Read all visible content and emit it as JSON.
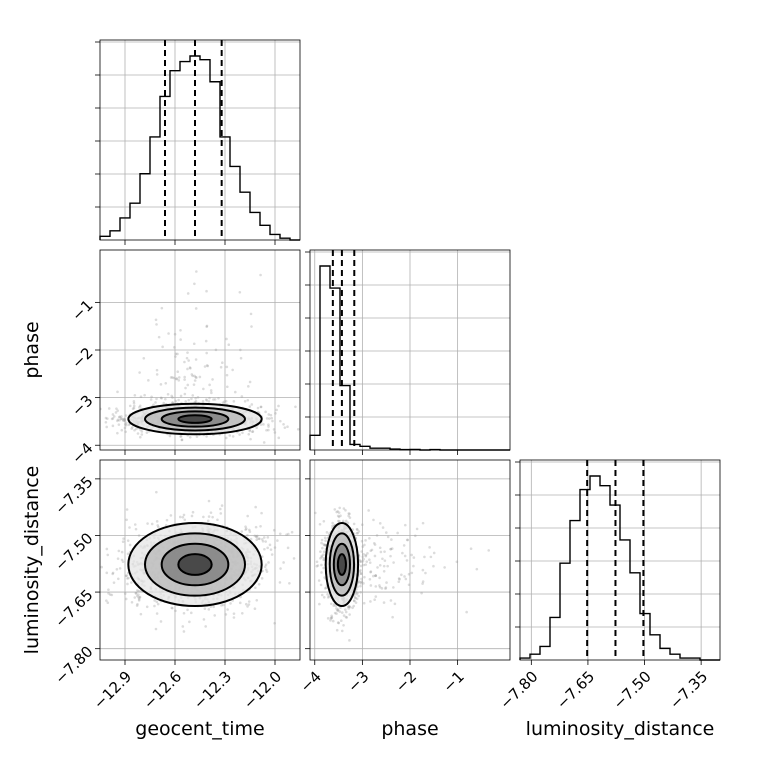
{
  "chart_data": {
    "type": "corner",
    "parameters": [
      "geocent_time",
      "phase",
      "luminosity_distance"
    ],
    "axis_ranges": {
      "geocent_time": [
        -13.05,
        -11.85
      ],
      "phase": [
        -4.1,
        0.1
      ],
      "luminosity_distance": [
        -7.83,
        -7.3
      ]
    },
    "ticks": {
      "geocent_time": [
        -12.9,
        -12.6,
        -12.3,
        -12.0
      ],
      "phase": [
        -4,
        -3,
        -2,
        -1
      ],
      "luminosity_distance": [
        -7.8,
        -7.65,
        -7.5,
        -7.35
      ]
    },
    "tick_labels": {
      "geocent_time": [
        "−12.9",
        "−12.6",
        "−12.3",
        "−12.0"
      ],
      "phase": [
        "−4",
        "−3",
        "−2",
        "−1"
      ],
      "luminosity_distance": [
        "−7.80",
        "−7.65",
        "−7.50",
        "−7.35"
      ]
    },
    "quantiles": {
      "geocent_time": [
        -12.66,
        -12.48,
        -12.32
      ],
      "phase": [
        -3.62,
        -3.43,
        -3.17
      ],
      "luminosity_distance": [
        -7.652,
        -7.577,
        -7.503
      ]
    },
    "histograms": {
      "geocent_time": {
        "range": [
          -13.05,
          -11.85
        ],
        "bins": 20,
        "counts": [
          2,
          5,
          12,
          20,
          36,
          56,
          78,
          92,
          97,
          100,
          98,
          86,
          56,
          40,
          26,
          15,
          8,
          3,
          1,
          0
        ]
      },
      "phase": {
        "range": [
          -4.1,
          0.1
        ],
        "bins": 20,
        "counts": [
          8,
          100,
          88,
          35,
          3,
          2,
          1,
          1,
          0.5,
          0.2,
          0.3,
          0,
          0.2,
          0,
          0,
          0,
          0,
          0,
          0,
          0
        ]
      },
      "luminosity_distance": {
        "range": [
          -7.83,
          -7.3
        ],
        "bins": 20,
        "counts": [
          1,
          3,
          7,
          22,
          50,
          72,
          88,
          95,
          90,
          80,
          62,
          45,
          24,
          13,
          6,
          3,
          1,
          1,
          0,
          0
        ]
      }
    },
    "joint": [
      {
        "x": "geocent_time",
        "y": "phase",
        "mean": [
          -12.48,
          -3.45
        ],
        "sd": [
          0.2,
          0.16
        ],
        "corr": -0.1
      },
      {
        "x": "geocent_time",
        "y": "luminosity_distance",
        "mean": [
          -12.48,
          -7.577
        ],
        "sd": [
          0.2,
          0.055
        ],
        "corr": 0.1
      },
      {
        "x": "phase",
        "y": "luminosity_distance",
        "mean": [
          -3.43,
          -7.577
        ],
        "sd": [
          0.17,
          0.055
        ],
        "corr": -0.05
      }
    ],
    "contour_levels_sigma": [
      0.5,
      1.0,
      1.5,
      2.0
    ],
    "grid": true,
    "layout": "lower-triangle 3x3"
  }
}
